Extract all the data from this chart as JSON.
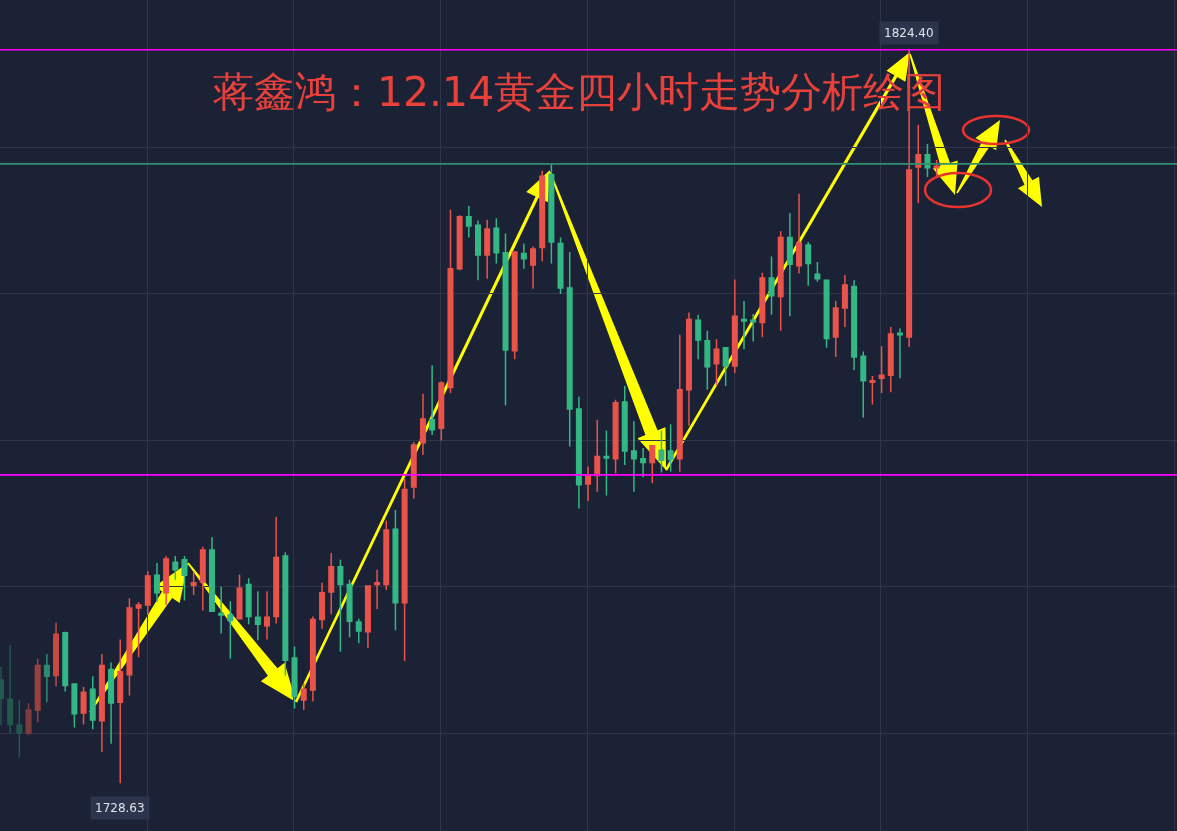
{
  "chart_data": {
    "type": "candlestick",
    "title": "蒋鑫鸿：12.14黄金四小时走势分析绘图",
    "categories": [
      null,
      null,
      null,
      null,
      null,
      null,
      null,
      null,
      null,
      null,
      null,
      null,
      null,
      null,
      null,
      null,
      null,
      null,
      null,
      null,
      null,
      null,
      null,
      null,
      null,
      null,
      null,
      null,
      null,
      null,
      null,
      null,
      null,
      null,
      null,
      null,
      null,
      null,
      null,
      null,
      null,
      null,
      null,
      null,
      null,
      null,
      null,
      null,
      null,
      null,
      null,
      null,
      null,
      null,
      null,
      null,
      null,
      null,
      null,
      null,
      null,
      null,
      null,
      null,
      null,
      null,
      null,
      null,
      null,
      null,
      null,
      null,
      null,
      null,
      null,
      null,
      null,
      null,
      null,
      null,
      null,
      null,
      null,
      null,
      null,
      null,
      null,
      null,
      null,
      null,
      null,
      null,
      null,
      null,
      null,
      null,
      null,
      null,
      null,
      null,
      null,
      null,
      null
    ],
    "ohlc": [
      [
        1742.1,
        1743.8,
        1736.2,
        1739.7
      ],
      [
        1739.6,
        1746.7,
        1735.2,
        1736.3
      ],
      [
        1736.2,
        1739.5,
        1732.0,
        1735.2
      ],
      [
        1735.2,
        1739.1,
        1734.9,
        1738.2
      ],
      [
        1738.2,
        1744.9,
        1736.6,
        1744.0
      ],
      [
        1744.0,
        1745.5,
        1739.2,
        1742.6
      ],
      [
        1742.7,
        1749.6,
        1741.3,
        1748.1
      ],
      [
        1748.3,
        1748.4,
        1740.6,
        1741.4
      ],
      [
        1741.6,
        1741.7,
        1735.9,
        1737.7
      ],
      [
        1737.8,
        1741.2,
        1736.3,
        1740.5
      ],
      [
        1740.9,
        1742.6,
        1735.7,
        1736.9
      ],
      [
        1736.8,
        1745.5,
        1732.7,
        1744.0
      ],
      [
        1743.5,
        1744.4,
        1733.8,
        1739.1
      ],
      [
        1739.2,
        1747.4,
        1728.63,
        1743.2
      ],
      [
        1742.8,
        1752.8,
        1740.1,
        1751.5
      ],
      [
        1751.5,
        1752.3,
        1745.1,
        1751.9
      ],
      [
        1751.9,
        1756.3,
        1750.6,
        1755.7
      ],
      [
        1755.8,
        1757.4,
        1752.3,
        1753.5
      ],
      [
        1753.5,
        1758.3,
        1751.9,
        1757.9
      ],
      [
        1757.5,
        1758.3,
        1755.2,
        1756.5
      ],
      [
        1757.8,
        1758.3,
        1752.5,
        1755.8
      ],
      [
        1754.5,
        1756.3,
        1753.2,
        1754.8
      ],
      [
        1754.9,
        1759.5,
        1751.2,
        1759.1
      ],
      [
        1759.1,
        1760.8,
        1751.0,
        1751.1
      ],
      [
        1750.8,
        1754.3,
        1748.2,
        1750.6
      ],
      [
        1750.6,
        1752.4,
        1744.9,
        1749.9
      ],
      [
        1750.1,
        1755.9,
        1750.0,
        1754.1
      ],
      [
        1754.6,
        1755.4,
        1749.4,
        1750.4
      ],
      [
        1750.3,
        1753.7,
        1747.3,
        1749.4
      ],
      [
        1749.2,
        1753.7,
        1747.4,
        1750.3
      ],
      [
        1750.4,
        1763.4,
        1749.5,
        1758.1
      ],
      [
        1758.3,
        1758.8,
        1742.7,
        1744.7
      ],
      [
        1745.0,
        1746.5,
        1738.4,
        1740.0
      ],
      [
        1739.5,
        1741.7,
        1738.2,
        1740.9
      ],
      [
        1740.8,
        1750.4,
        1739.3,
        1750.0
      ],
      [
        1750.0,
        1754.8,
        1748.8,
        1753.5
      ],
      [
        1753.6,
        1758.7,
        1750.7,
        1756.9
      ],
      [
        1756.9,
        1757.8,
        1745.8,
        1754.6
      ],
      [
        1754.6,
        1755.2,
        1747.7,
        1749.8
      ],
      [
        1749.7,
        1750.1,
        1746.9,
        1748.5
      ],
      [
        1748.4,
        1754.5,
        1746.3,
        1754.4
      ],
      [
        1754.6,
        1756.5,
        1751.4,
        1754.8
      ],
      [
        1754.6,
        1762.9,
        1753.9,
        1761.7
      ],
      [
        1761.8,
        1764.3,
        1748.6,
        1752.2
      ],
      [
        1752.2,
        1768.4,
        1744.6,
        1767.0
      ],
      [
        1767.3,
        1773.2,
        1765.8,
        1772.8
      ],
      [
        1773.1,
        1779.5,
        1771.5,
        1776.2
      ],
      [
        1776.1,
        1783.2,
        1774.1,
        1774.8
      ],
      [
        1775.0,
        1781.1,
        1773.4,
        1780.9
      ],
      [
        1780.3,
        1803.5,
        1779.6,
        1795.8
      ],
      [
        1795.8,
        1802.8,
        1795.6,
        1802.6
      ],
      [
        1802.6,
        1804.0,
        1799.9,
        1801.4
      ],
      [
        1801.5,
        1802.1,
        1794.3,
        1797.6
      ],
      [
        1797.6,
        1802.2,
        1794.5,
        1801.0
      ],
      [
        1801.1,
        1802.4,
        1796.5,
        1797.9
      ],
      [
        1797.9,
        1800.4,
        1778.0,
        1785.2
      ],
      [
        1785.1,
        1798.1,
        1784.0,
        1798.0
      ],
      [
        1797.8,
        1799.1,
        1795.8,
        1797.1
      ],
      [
        1796.3,
        1798.7,
        1793.2,
        1798.4
      ],
      [
        1798.6,
        1808.6,
        1796.8,
        1807.9
      ],
      [
        1808.1,
        1809.5,
        1796.5,
        1799.3
      ],
      [
        1799.1,
        1799.9,
        1792.5,
        1793.3
      ],
      [
        1793.3,
        1798.0,
        1772.6,
        1777.5
      ],
      [
        1777.5,
        1779.1,
        1764.5,
        1767.6
      ],
      [
        1767.7,
        1770.0,
        1765.5,
        1768.8
      ],
      [
        1768.8,
        1776.1,
        1766.7,
        1771.3
      ],
      [
        1771.3,
        1774.7,
        1766.2,
        1771.1
      ],
      [
        1771.0,
        1778.7,
        1769.1,
        1778.3
      ],
      [
        1778.4,
        1780.5,
        1770.2,
        1772.0
      ],
      [
        1772.0,
        1775.9,
        1766.7,
        1771.0
      ],
      [
        1771.0,
        1772.4,
        1768.6,
        1770.5
      ],
      [
        1770.5,
        1772.8,
        1767.8,
        1772.7
      ],
      [
        1772.1,
        1774.7,
        1769.2,
        1770.8
      ],
      [
        1772.0,
        1775.5,
        1769.3,
        1770.9
      ],
      [
        1771.0,
        1787.2,
        1769.3,
        1780.0
      ],
      [
        1780.0,
        1790.1,
        1775.3,
        1789.2
      ],
      [
        1789.1,
        1789.8,
        1784.0,
        1786.5
      ],
      [
        1786.4,
        1787.7,
        1780.0,
        1783.0
      ],
      [
        1783.4,
        1786.6,
        1780.6,
        1785.3
      ],
      [
        1785.5,
        1785.6,
        1780.5,
        1783.1
      ],
      [
        1783.1,
        1794.4,
        1782.2,
        1789.6
      ],
      [
        1789.2,
        1791.6,
        1785.3,
        1789.0
      ],
      [
        1789.1,
        1789.9,
        1786.3,
        1788.9
      ],
      [
        1788.8,
        1795.3,
        1786.9,
        1794.6
      ],
      [
        1794.6,
        1797.4,
        1789.8,
        1792.3
      ],
      [
        1792.2,
        1800.7,
        1787.7,
        1799.9
      ],
      [
        1799.9,
        1803.1,
        1789.6,
        1796.4
      ],
      [
        1796.2,
        1805.6,
        1795.2,
        1799.2
      ],
      [
        1798.9,
        1799.3,
        1793.6,
        1796.5
      ],
      [
        1795.1,
        1796.7,
        1794.1,
        1794.5
      ],
      [
        1794.3,
        1794.4,
        1785.5,
        1786.7
      ],
      [
        1786.9,
        1791.6,
        1784.3,
        1790.7
      ],
      [
        1790.7,
        1795.0,
        1788.2,
        1793.7
      ],
      [
        1793.5,
        1794.3,
        1782.6,
        1784.3
      ],
      [
        1784.4,
        1785.0,
        1776.4,
        1781.2
      ],
      [
        1781.0,
        1781.8,
        1778.1,
        1781.2
      ],
      [
        1781.5,
        1785.7,
        1779.6,
        1781.9
      ],
      [
        1781.9,
        1788.2,
        1779.7,
        1787.3
      ],
      [
        1787.4,
        1788.0,
        1781.5,
        1787.2
      ],
      [
        1786.9,
        1824.4,
        1785.6,
        1808.7
      ],
      [
        1809.1,
        1814.6,
        1804.4,
        1810.7
      ],
      [
        1810.7,
        1812.1,
        1807.8,
        1809.0
      ],
      [
        1809.0,
        1810.0,
        1807.9,
        1809.2
      ]
    ],
    "colors": [
      "#22584d",
      "#22584d",
      "#22584d",
      "#7e3b3b",
      "#9a4240",
      "#2e8b70",
      "#c74a42",
      "#33b784",
      "#33b784",
      "#e9534a",
      "#33b784",
      "#e9534a",
      "#33b784",
      "#e9534a",
      "#e9534a",
      "#e9534a",
      "#e9534a",
      "#33b784",
      "#e9534a",
      "#33b784",
      "#33b784",
      "#e9534a",
      "#e9534a",
      "#33b784",
      "#33b784",
      "#33b784",
      "#e9534a",
      "#33b784",
      "#33b784",
      "#e9534a",
      "#e9534a",
      "#33b784",
      "#33b784",
      "#e9534a",
      "#e9534a",
      "#e9534a",
      "#e9534a",
      "#33b784",
      "#33b784",
      "#33b784",
      "#e9534a",
      "#e9534a",
      "#e9534a",
      "#33b784",
      "#e9534a",
      "#e9534a",
      "#e9534a",
      "#33b784",
      "#e9534a",
      "#e9534a",
      "#e9534a",
      "#33b784",
      "#33b784",
      "#e9534a",
      "#33b784",
      "#33b784",
      "#e9534a",
      "#33b784",
      "#e9534a",
      "#e9534a",
      "#33b784",
      "#33b784",
      "#33b784",
      "#33b784",
      "#e9534a",
      "#e9534a",
      "#33b784",
      "#e9534a",
      "#33b784",
      "#33b784",
      "#33b784",
      "#e9534a",
      "#33b784",
      "#33b784",
      "#e9534a",
      "#e9534a",
      "#33b784",
      "#33b784",
      "#e9534a",
      "#33b784",
      "#e9534a",
      "#33b784",
      "#33b784",
      "#e9534a",
      "#33b784",
      "#e9534a",
      "#33b784",
      "#e9534a",
      "#33b784",
      "#33b784",
      "#33b784",
      "#e9534a",
      "#e9534a",
      "#33b784",
      "#33b784",
      "#e9534a",
      "#e9534a",
      "#e9534a",
      "#33b784",
      "#e9534a",
      "#e9534a",
      "#33b784",
      "#e9534a"
    ],
    "ylim": [
      1722.4,
      1830.9
    ],
    "tick_labels": false,
    "grid": true,
    "ref_lines": [
      {
        "axis": "y",
        "value": 1824.4,
        "color": "#ff00ff"
      },
      {
        "axis": "y",
        "value": 1768.9,
        "color": "#ff00ff"
      },
      {
        "axis": "y",
        "value": 1809.5,
        "color": "#2f8f6f"
      }
    ],
    "annotations": [
      {
        "text": "1824.40",
        "y": 1824.4
      },
      {
        "text": "1728.63",
        "y": 1728.63
      }
    ]
  }
}
